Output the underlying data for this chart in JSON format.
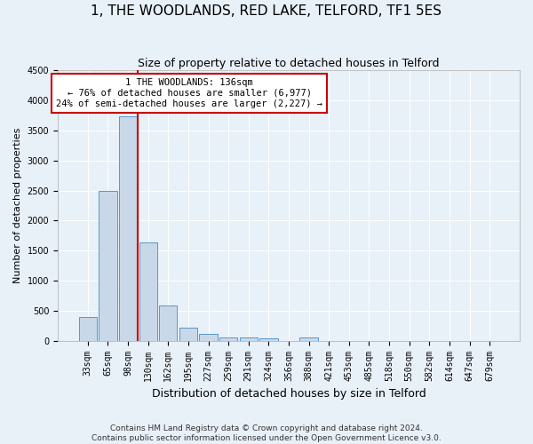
{
  "title": "1, THE WOODLANDS, RED LAKE, TELFORD, TF1 5ES",
  "subtitle": "Size of property relative to detached houses in Telford",
  "xlabel": "Distribution of detached houses by size in Telford",
  "ylabel": "Number of detached properties",
  "footnote1": "Contains HM Land Registry data © Crown copyright and database right 2024.",
  "footnote2": "Contains public sector information licensed under the Open Government Licence v3.0.",
  "bin_labels": [
    "33sqm",
    "65sqm",
    "98sqm",
    "130sqm",
    "162sqm",
    "195sqm",
    "227sqm",
    "259sqm",
    "291sqm",
    "324sqm",
    "356sqm",
    "388sqm",
    "421sqm",
    "453sqm",
    "485sqm",
    "518sqm",
    "550sqm",
    "582sqm",
    "614sqm",
    "647sqm",
    "679sqm"
  ],
  "bar_values": [
    390,
    2500,
    3730,
    1640,
    590,
    220,
    110,
    60,
    50,
    35,
    0,
    60,
    0,
    0,
    0,
    0,
    0,
    0,
    0,
    0,
    0
  ],
  "bar_color": "#c8d8e8",
  "bar_edge_color": "#5599cc",
  "ylim": [
    0,
    4500
  ],
  "yticks": [
    0,
    500,
    1000,
    1500,
    2000,
    2500,
    3000,
    3500,
    4000,
    4500
  ],
  "red_line_after_bin": 2,
  "annotation_line1": "1 THE WOODLANDS: 136sqm",
  "annotation_line2": "← 76% of detached houses are smaller (6,977)",
  "annotation_line3": "24% of semi-detached houses are larger (2,227) →",
  "annotation_box_color": "#ffffff",
  "annotation_box_edge": "#cc0000",
  "red_line_color": "#cc0000",
  "background_color": "#e8f0f8",
  "grid_color": "#ffffff",
  "title_fontsize": 11,
  "subtitle_fontsize": 9,
  "ylabel_fontsize": 8,
  "xlabel_fontsize": 9,
  "tick_fontsize": 7,
  "annotation_fontsize": 7.5,
  "footnote_fontsize": 6.5
}
